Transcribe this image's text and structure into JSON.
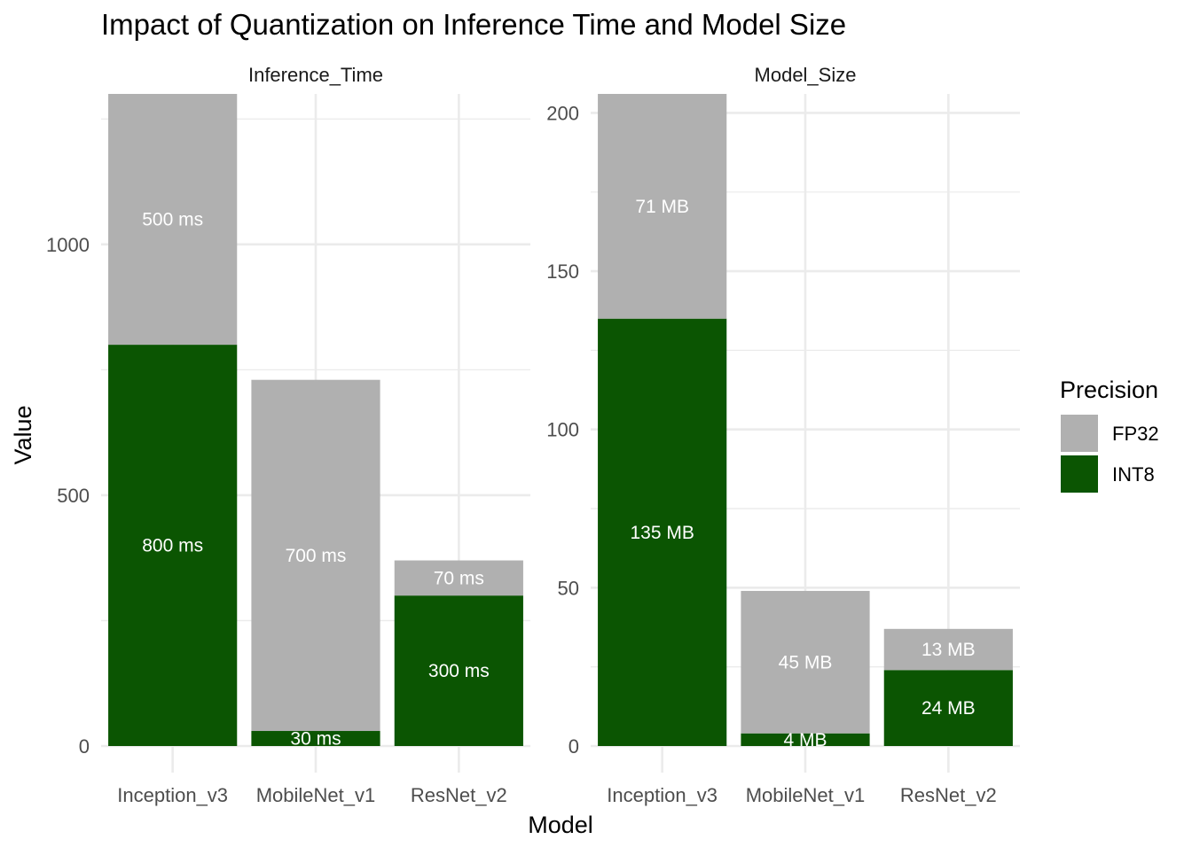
{
  "chart_data": {
    "type": "bar",
    "stacked": true,
    "title": "Impact of Quantization on Inference Time and Model Size",
    "xlabel": "Model",
    "ylabel": "Value",
    "categories": [
      "Inception_v3",
      "MobileNet_v1",
      "ResNet_v2"
    ],
    "grid": true,
    "legend": {
      "title": "Precision",
      "position": "right",
      "entries": [
        {
          "name": "FP32",
          "color": "#b0b0b0"
        },
        {
          "name": "INT8",
          "color": "#0b5502"
        }
      ]
    },
    "panels": [
      {
        "strip": "Inference_Time",
        "ylim": [
          0,
          1300
        ],
        "yticks": [
          0,
          500,
          1000
        ],
        "yticks_minor": [
          250,
          750,
          1250
        ],
        "series": [
          {
            "name": "INT8",
            "values": [
              800,
              30,
              300
            ],
            "labels": [
              "800 ms",
              "30 ms",
              "300 ms"
            ]
          },
          {
            "name": "FP32",
            "values": [
              500,
              700,
              70
            ],
            "labels": [
              "500 ms",
              "700 ms",
              "70 ms"
            ]
          }
        ]
      },
      {
        "strip": "Model_Size",
        "ylim": [
          0,
          206
        ],
        "yticks": [
          0,
          50,
          100,
          150,
          200
        ],
        "yticks_minor": [
          25,
          75,
          125,
          175
        ],
        "series": [
          {
            "name": "INT8",
            "values": [
              135,
              4,
              24
            ],
            "labels": [
              "135 MB",
              "4 MB",
              "24 MB"
            ]
          },
          {
            "name": "FP32",
            "values": [
              71,
              45,
              13
            ],
            "labels": [
              "71 MB",
              "45 MB",
              "13 MB"
            ]
          }
        ]
      }
    ]
  }
}
